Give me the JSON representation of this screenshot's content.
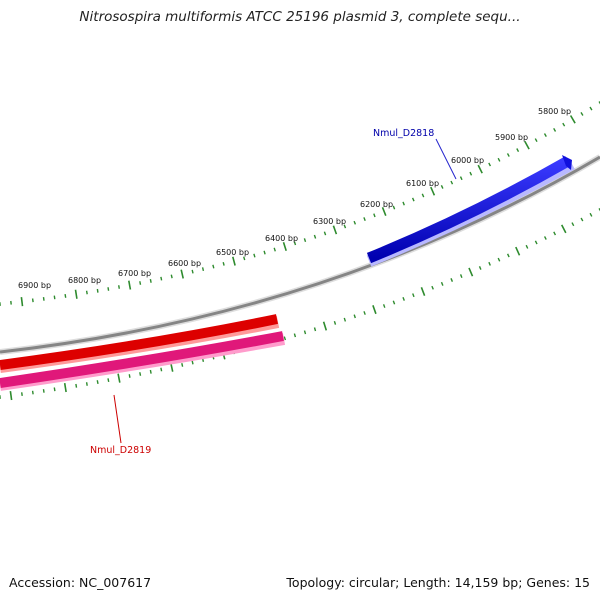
{
  "title": "Nitrosospira multiformis ATCC 25196 plasmid 3, complete sequ...",
  "footer": {
    "accession": "Accession: NC_007617",
    "summary": "Topology: circular; Length: 14,159 bp; Genes: 15"
  },
  "colors": {
    "backbone": "#8a8a8a",
    "ticks": "#2e8b2e",
    "forward_gene": "#1010dd",
    "reverse_gene_1": "#e00000",
    "reverse_gene_2": "#e0187a"
  },
  "scale": {
    "tick_labels": [
      "5800 bp",
      "5900 bp",
      "6000 bp",
      "6100 bp",
      "6200 bp",
      "6300 bp",
      "6400 bp",
      "6500 bp",
      "6600 bp",
      "6700 bp",
      "6800 bp",
      "6900 bp"
    ]
  },
  "genes": [
    {
      "name": "Nmul_D2818",
      "strand": "forward",
      "color": "#1010dd"
    },
    {
      "name": "Nmul_D2819",
      "strand": "reverse",
      "color": "#cc0000"
    }
  ]
}
